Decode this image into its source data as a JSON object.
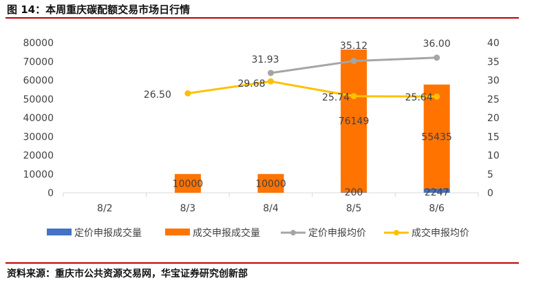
{
  "title": "图 14：本周重庆碳配额交易市场日行情",
  "source": "资料来源：重庆市公共资源交易网，华宝证券研究创新部",
  "chart_data": {
    "type": "bar",
    "categories": [
      "8/2",
      "8/3",
      "8/4",
      "8/5",
      "8/6"
    ],
    "series": [
      {
        "name": "定价申报成交量",
        "kind": "bar",
        "axis": "left",
        "color": "#4472c4",
        "values": [
          0,
          0,
          0,
          200,
          2247
        ],
        "labels": [
          "",
          "",
          "",
          "200",
          "2247"
        ]
      },
      {
        "name": "成交申报成交量",
        "kind": "bar",
        "axis": "left",
        "color": "#ff7300",
        "values": [
          0,
          10000,
          10000,
          76149,
          55435
        ],
        "labels": [
          "",
          "10000",
          "10000",
          "76149",
          "55435"
        ]
      },
      {
        "name": "定价申报均价",
        "kind": "line",
        "axis": "right",
        "color": "#a5a5a5",
        "values": [
          null,
          null,
          31.93,
          35.12,
          36.0
        ],
        "labels": [
          "",
          "",
          "31.93",
          "35.12",
          "36.00"
        ]
      },
      {
        "name": "成交申报均价",
        "kind": "line",
        "axis": "right",
        "color": "#ffc000",
        "values": [
          null,
          26.5,
          29.68,
          25.74,
          25.64
        ],
        "labels": [
          "",
          "26.50",
          "29.68",
          "25.74",
          "25.64"
        ]
      }
    ],
    "y_left": {
      "ticks": [
        "0",
        "10000",
        "20000",
        "30000",
        "40000",
        "50000",
        "60000",
        "70000",
        "80000"
      ],
      "lim": [
        0,
        80000
      ]
    },
    "y_right": {
      "ticks": [
        "0",
        "5",
        "10",
        "15",
        "20",
        "25",
        "30",
        "35",
        "40"
      ],
      "lim": [
        0,
        40
      ]
    },
    "grid": false,
    "legend_position": "bottom"
  }
}
